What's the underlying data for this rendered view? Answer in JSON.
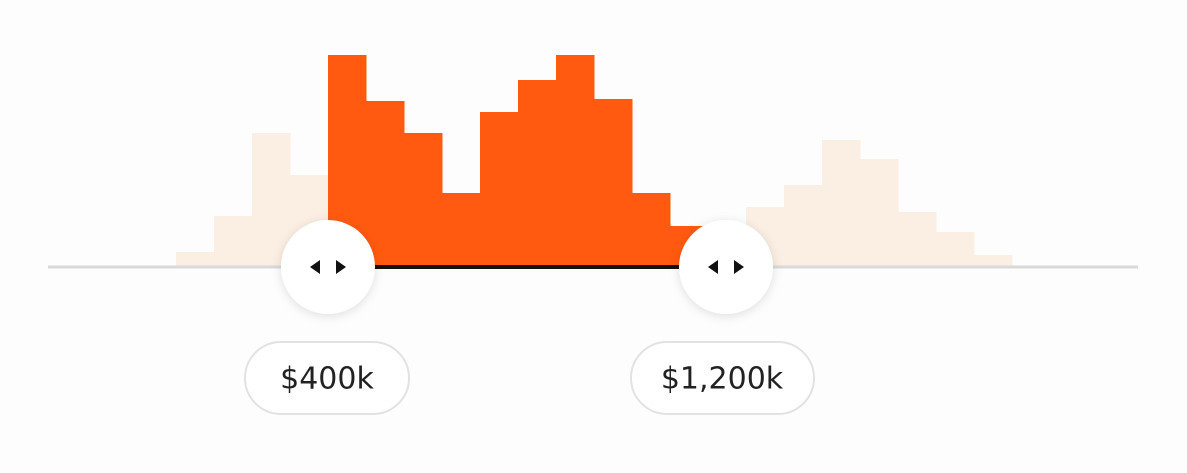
{
  "slider": {
    "histogram": [
      14,
      50,
      133,
      91,
      211,
      165,
      133,
      73,
      154,
      186,
      211,
      167,
      73,
      40,
      20,
      59,
      81,
      126,
      107,
      54,
      34,
      11
    ],
    "selected_bars": [
      4,
      13
    ],
    "colors": {
      "selected": "#ff5a0f",
      "unselected": "#fbeee2",
      "track": "#d9d9d9",
      "active_track": "#111111"
    },
    "min_label": "$400k",
    "max_label": "$1,200k"
  }
}
